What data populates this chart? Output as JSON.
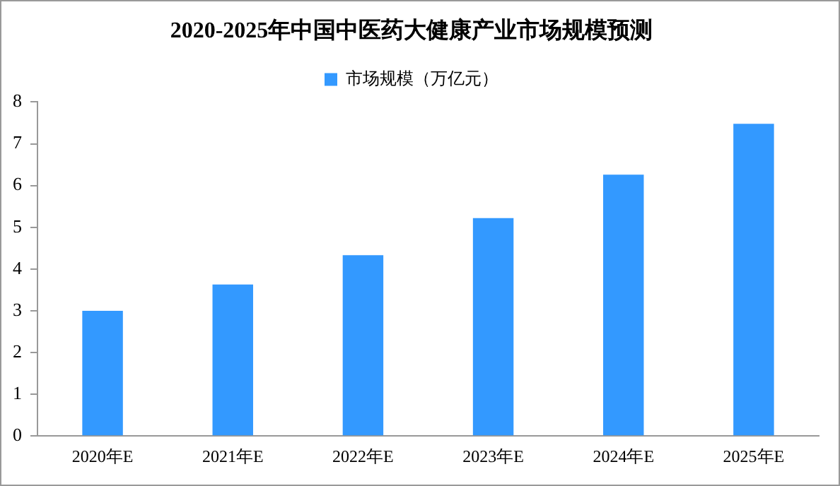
{
  "chart_data": {
    "type": "bar",
    "title": "2020-2025年中国中医药大健康产业市场规模预测",
    "categories": [
      "2020年E",
      "2021年E",
      "2022年E",
      "2023年E",
      "2024年E",
      "2025年E"
    ],
    "series": [
      {
        "name": "市场规模（万亿元）",
        "color": "#3399ff",
        "values": [
          3.0,
          3.63,
          4.33,
          5.22,
          6.26,
          7.48
        ]
      }
    ],
    "ylim": [
      0,
      8
    ],
    "yticks": [
      0,
      1,
      2,
      3,
      4,
      5,
      6,
      7,
      8
    ],
    "grid": false,
    "legend": "top"
  }
}
